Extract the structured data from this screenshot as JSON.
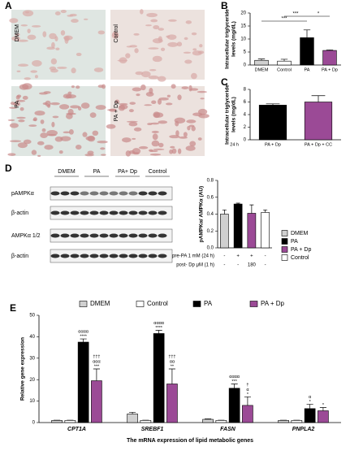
{
  "panel_a": {
    "label": "A",
    "images": [
      "DMEM",
      "Control",
      "PA",
      "PA + Dp"
    ]
  },
  "panel_d_blot": {
    "label": "D",
    "groups": [
      "DMEM",
      "PA",
      "PA+ Dp",
      "Control"
    ],
    "rows": [
      "pAMPKα",
      "β-actin",
      "AMPKα 1/2",
      "β-actin"
    ]
  },
  "chart_data": [
    {
      "type": "bar",
      "label": "B",
      "ylabel": [
        "Intracellular triglyceride",
        "levels (mg/dL)"
      ],
      "categories": [
        "DMEM",
        "Control",
        "PA",
        "PA + Dp"
      ],
      "values": [
        1.8,
        1.5,
        10.5,
        5.6
      ],
      "errors": [
        0.5,
        0.7,
        3,
        0.2
      ],
      "colors": [
        "#d0d0d0",
        "#ffffff",
        "#000000",
        "#9b4a96"
      ],
      "ylim": [
        0,
        20
      ],
      "yticks": [
        0,
        5,
        10,
        15,
        20
      ],
      "significance": [
        "***",
        "***",
        "*"
      ]
    },
    {
      "type": "bar",
      "label": "C",
      "ylabel": [
        "Intracellular triglyceride",
        "levels (mg/dL)"
      ],
      "x_prefix": "24 h",
      "categories": [
        "PA + Dp",
        "PA + Dp + CC"
      ],
      "values": [
        5.5,
        6
      ],
      "errors": [
        0.2,
        1
      ],
      "colors": [
        "#000000",
        "#9b4a96"
      ],
      "ylim": [
        0,
        8
      ],
      "yticks": [
        0,
        2,
        4,
        6,
        8
      ]
    },
    {
      "type": "bar",
      "ylabel": [
        "pAMPKα/ AMPKα (AU)"
      ],
      "legend": "right",
      "categories": [
        "DMEM",
        "PA",
        "PA + Dp",
        "Control"
      ],
      "values": [
        0.4,
        0.52,
        0.41,
        0.42
      ],
      "errors": [
        0.05,
        0.01,
        0.1,
        0.03
      ],
      "colors": [
        "#d0d0d0",
        "#000000",
        "#9b4a96",
        "#ffffff"
      ],
      "ylim": [
        0,
        0.8
      ],
      "yticks": [
        {
          "value": 0,
          "label": "0.0"
        },
        0.2,
        0.4,
        0.6,
        0.8
      ],
      "table": [
        {
          "name": "pre-PA 1 mM (24 h)",
          "cells": [
            "-",
            "+",
            "+",
            "-"
          ]
        },
        {
          "name": "post- Dp μM (1 h)",
          "cells": [
            "-",
            "-",
            "180",
            "-"
          ]
        }
      ]
    },
    {
      "type": "grouped_bar",
      "label": "E",
      "ylabel": [
        "Relative gene expression"
      ],
      "xlabel": "The mRNA expression of lipid metabolic genes",
      "legend": "top",
      "categories": [
        "CPT1A",
        "SREBF1",
        "FASN",
        "PNPLA2"
      ],
      "ylim": [
        0,
        50
      ],
      "yticks": [
        0,
        10,
        20,
        30,
        40,
        50
      ],
      "series": [
        {
          "name": "DMEM",
          "color": "#d0d0d0",
          "values": [
            1,
            4,
            1.5,
            1
          ],
          "errors": [
            0.1,
            0.8,
            0.2,
            0.1
          ]
        },
        {
          "name": "Control",
          "color": "#ffffff",
          "values": [
            1,
            1,
            1,
            1
          ],
          "errors": [
            0.1,
            0.1,
            0.1,
            0.1
          ]
        },
        {
          "name": "PA",
          "color": "#000000",
          "values": [
            37.5,
            41.5,
            16,
            6.5
          ],
          "errors": [
            1.5,
            1.5,
            2,
            2
          ],
          "annotations": [
            [
              "αααα",
              "****"
            ],
            [
              "αααα",
              "****"
            ],
            [
              "αααα",
              "***"
            ],
            [
              "α",
              "*"
            ]
          ]
        },
        {
          "name": "PA + Dp",
          "color": "#9b4a96",
          "values": [
            19.5,
            18,
            8,
            5.5
          ],
          "errors": [
            5.5,
            7,
            4,
            1.5
          ],
          "annotations": [
            [
              "†††",
              "ααα",
              "***"
            ],
            [
              "†††",
              "αα",
              "**"
            ],
            [
              "†",
              "α",
              "*"
            ],
            [
              "*"
            ]
          ]
        }
      ]
    }
  ]
}
